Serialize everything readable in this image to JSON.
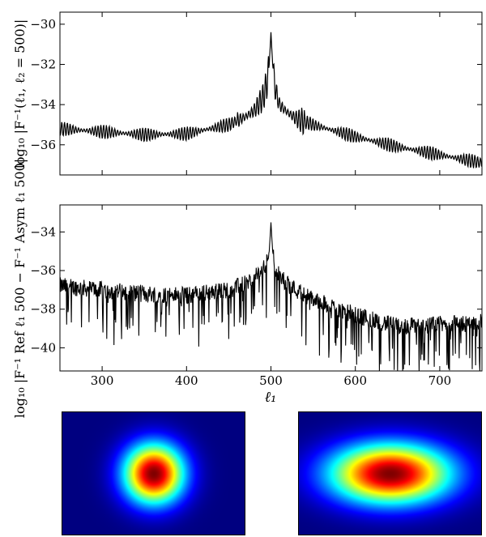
{
  "chart_data": [
    {
      "type": "line",
      "panel": "top",
      "ylabel": "log₁₀ |F⁻¹(ℓ₁, ℓ₂ = 500)|",
      "xlabel": "",
      "xlim": [
        250,
        750
      ],
      "ylim": [
        -37.5,
        -29.4
      ],
      "yticks": [
        -36,
        -34,
        -32,
        -30
      ],
      "ytick_labels": [
        "−36",
        "−34",
        "−32",
        "−30"
      ],
      "xticks": [
        300,
        400,
        500,
        600,
        700
      ],
      "xtick_labels_shown": false,
      "series": [
        {
          "name": "log10 |F^-1(l1, l2=500)|",
          "x": [
            250,
            300,
            350,
            400,
            450,
            470,
            480,
            490,
            495,
            498,
            500,
            502,
            505,
            510,
            520,
            530,
            550,
            600,
            650,
            700,
            750
          ],
          "values": [
            -35.2,
            -35.35,
            -35.5,
            -35.45,
            -35.0,
            -34.6,
            -34.3,
            -33.7,
            -33.0,
            -32.0,
            -30.4,
            -32.0,
            -33.2,
            -34.0,
            -34.4,
            -34.7,
            -35.0,
            -35.6,
            -36.1,
            -36.5,
            -36.9
          ],
          "oscillation_amplitude": 0.35,
          "color": "#000000"
        }
      ]
    },
    {
      "type": "line",
      "panel": "middle",
      "ylabel": "log₁₀ |F⁻¹ Ref ℓ₁ 500 − F⁻¹ Asym ℓ₁ 500|",
      "xlabel": "ℓ₁",
      "xlim": [
        250,
        750
      ],
      "ylim": [
        -41.2,
        -32.6
      ],
      "yticks": [
        -40,
        -38,
        -36,
        -34
      ],
      "ytick_labels": [
        "−40",
        "−38",
        "−36",
        "−34"
      ],
      "xticks": [
        300,
        400,
        500,
        600,
        700
      ],
      "xtick_labels": [
        "300",
        "400",
        "500",
        "600",
        "700"
      ],
      "series": [
        {
          "name": "log10 |F_ref - F_asym|",
          "x": [
            250,
            300,
            350,
            400,
            450,
            470,
            480,
            490,
            495,
            498,
            500,
            502,
            505,
            510,
            520,
            530,
            550,
            600,
            650,
            700,
            750
          ],
          "values": [
            -36.8,
            -37.0,
            -37.2,
            -37.3,
            -37.0,
            -36.7,
            -36.4,
            -36.0,
            -35.6,
            -35.0,
            -33.5,
            -35.0,
            -35.8,
            -36.3,
            -36.7,
            -37.0,
            -37.5,
            -38.3,
            -38.9,
            -38.8,
            -38.7
          ],
          "noise_spikes_down_to": -40.8,
          "color": "#000000"
        }
      ]
    },
    {
      "type": "heatmap",
      "panel": "bottom-left",
      "colormap": "jet",
      "description_shape": "circular-gaussian",
      "sigma_ratio_x_to_y": 1.0
    },
    {
      "type": "heatmap",
      "panel": "bottom-right",
      "colormap": "jet",
      "description_shape": "elliptical-gaussian",
      "sigma_ratio_x_to_y": 2.0
    }
  ],
  "colors": {
    "line": "#000000",
    "jet_low": "#00007f",
    "jet_high": "#7f0000"
  }
}
